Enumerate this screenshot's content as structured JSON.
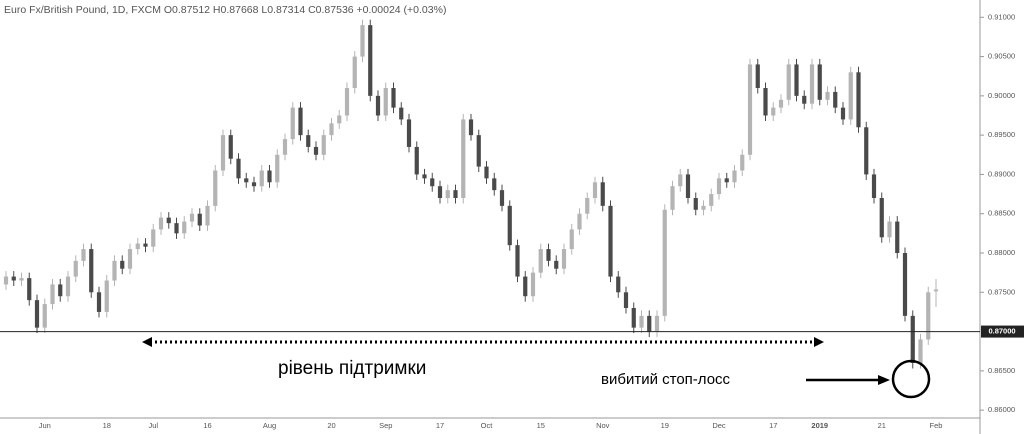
{
  "chart_data": {
    "type": "candlestick",
    "title": "Euro Fx/British Pound, 1D, FXCM O0.87512 H0.87668 L0.87314 C0.87536 +0.00024 (+0.03%)",
    "annotations": [
      "рівень підтримки",
      "вибитий стоп-лосс"
    ],
    "up_color": "#b4b4b4",
    "down_color": "#4a4a4a",
    "support_line": {
      "value": 0.87,
      "label": "0.87000"
    },
    "ylim": [
      0.859,
      0.9122
    ],
    "yticks": [
      {
        "value": 0.86,
        "label": "0.86000"
      },
      {
        "value": 0.865,
        "label": "0.86500"
      },
      {
        "value": 0.875,
        "label": "0.87500"
      },
      {
        "value": 0.88,
        "label": "0.88000"
      },
      {
        "value": 0.885,
        "label": "0.88500"
      },
      {
        "value": 0.89,
        "label": "0.89000"
      },
      {
        "value": 0.895,
        "label": "0.89500"
      },
      {
        "value": 0.9,
        "label": "0.90000"
      },
      {
        "value": 0.905,
        "label": "0.90500"
      },
      {
        "value": 0.91,
        "label": "0.91000"
      }
    ],
    "categories": [
      null,
      null,
      null,
      null,
      null,
      "Jun",
      null,
      null,
      null,
      null,
      null,
      null,
      null,
      "18",
      null,
      null,
      null,
      null,
      null,
      "Jul",
      null,
      null,
      null,
      null,
      null,
      null,
      "16",
      null,
      null,
      null,
      null,
      null,
      null,
      null,
      "Aug",
      null,
      null,
      null,
      null,
      null,
      null,
      null,
      "20",
      null,
      null,
      null,
      null,
      null,
      null,
      "Sep",
      null,
      null,
      null,
      null,
      null,
      null,
      "17",
      null,
      null,
      null,
      null,
      null,
      "Oct",
      null,
      null,
      null,
      null,
      null,
      null,
      "15",
      null,
      null,
      null,
      null,
      null,
      null,
      null,
      "Nov",
      null,
      null,
      null,
      null,
      null,
      null,
      null,
      "19",
      null,
      null,
      null,
      null,
      null,
      null,
      "Dec",
      null,
      null,
      null,
      null,
      null,
      null,
      "17",
      null,
      null,
      null,
      null,
      null,
      "2019",
      null,
      null,
      null,
      null,
      null,
      null,
      null,
      "21",
      null,
      null,
      null,
      null,
      null,
      null,
      "Feb"
    ],
    "open": [
      0.876,
      0.877,
      0.8765,
      0.8768,
      0.874,
      0.8705,
      0.8735,
      0.876,
      0.8745,
      0.877,
      0.879,
      0.8805,
      0.875,
      0.8725,
      0.8765,
      0.879,
      0.878,
      0.8805,
      0.8812,
      0.8808,
      0.883,
      0.8845,
      0.8838,
      0.8825,
      0.884,
      0.885,
      0.8835,
      0.886,
      0.8905,
      0.895,
      0.892,
      0.8895,
      0.889,
      0.8885,
      0.8905,
      0.889,
      0.8925,
      0.8945,
      0.8985,
      0.895,
      0.8935,
      0.8925,
      0.895,
      0.8965,
      0.8975,
      0.901,
      0.905,
      0.909,
      0.9,
      0.8975,
      0.901,
      0.8985,
      0.897,
      0.8935,
      0.89,
      0.8895,
      0.8885,
      0.887,
      0.888,
      0.887,
      0.897,
      0.895,
      0.891,
      0.8895,
      0.888,
      0.886,
      0.881,
      0.877,
      0.8745,
      0.8775,
      0.8805,
      0.879,
      0.878,
      0.8805,
      0.883,
      0.885,
      0.887,
      0.889,
      0.886,
      0.877,
      0.875,
      0.873,
      0.8705,
      0.872,
      0.87,
      0.872,
      0.8855,
      0.8885,
      0.89,
      0.887,
      0.8855,
      0.886,
      0.8875,
      0.8895,
      0.889,
      0.8905,
      0.8925,
      0.904,
      0.901,
      0.8975,
      0.8985,
      0.8995,
      0.904,
      0.9,
      0.899,
      0.904,
      0.8995,
      0.9005,
      0.8985,
      0.897,
      0.903,
      0.896,
      0.89,
      0.887,
      0.882,
      0.884,
      0.88,
      0.872,
      0.866,
      0.869,
      0.87512
    ],
    "high": [
      0.8777,
      0.8777,
      0.8775,
      0.8775,
      0.8747,
      0.8742,
      0.8767,
      0.8767,
      0.8777,
      0.8797,
      0.8812,
      0.8812,
      0.8757,
      0.8772,
      0.8797,
      0.8797,
      0.8812,
      0.8819,
      0.8819,
      0.8837,
      0.8852,
      0.8852,
      0.8845,
      0.8847,
      0.8857,
      0.8857,
      0.8867,
      0.8912,
      0.8957,
      0.8957,
      0.8927,
      0.8902,
      0.8897,
      0.8912,
      0.8912,
      0.8932,
      0.8952,
      0.8992,
      0.8992,
      0.8957,
      0.8942,
      0.8957,
      0.8972,
      0.8982,
      0.9017,
      0.9057,
      0.9097,
      0.9097,
      0.9007,
      0.9017,
      0.9017,
      0.8992,
      0.8977,
      0.8942,
      0.8907,
      0.8902,
      0.8892,
      0.8887,
      0.8887,
      0.8977,
      0.8977,
      0.8957,
      0.8917,
      0.8902,
      0.8887,
      0.8867,
      0.8817,
      0.8777,
      0.8782,
      0.8812,
      0.8812,
      0.8797,
      0.8812,
      0.8837,
      0.8857,
      0.8877,
      0.8897,
      0.8897,
      0.8867,
      0.8777,
      0.8757,
      0.8737,
      0.8727,
      0.8727,
      0.8727,
      0.8862,
      0.8892,
      0.8907,
      0.8907,
      0.8877,
      0.8867,
      0.8882,
      0.8902,
      0.8902,
      0.8912,
      0.8932,
      0.9047,
      0.9047,
      0.9017,
      0.8992,
      0.9002,
      0.9047,
      0.9047,
      0.9007,
      0.9047,
      0.9047,
      0.9012,
      0.9012,
      0.8992,
      0.9037,
      0.9037,
      0.8967,
      0.8907,
      0.8877,
      0.8847,
      0.8847,
      0.8807,
      0.8727,
      0.8697,
      0.8757,
      0.87668
    ],
    "low": [
      0.8753,
      0.8758,
      0.8758,
      0.8733,
      0.8698,
      0.8698,
      0.8728,
      0.8738,
      0.8738,
      0.8763,
      0.8783,
      0.8743,
      0.8718,
      0.8718,
      0.8758,
      0.8773,
      0.8773,
      0.8798,
      0.8801,
      0.8801,
      0.8823,
      0.8831,
      0.8818,
      0.8818,
      0.8833,
      0.8828,
      0.8828,
      0.8853,
      0.8898,
      0.8913,
      0.8888,
      0.8883,
      0.8878,
      0.8878,
      0.8883,
      0.8883,
      0.8918,
      0.8938,
      0.8943,
      0.8928,
      0.8918,
      0.8918,
      0.8943,
      0.8958,
      0.8968,
      0.9003,
      0.9043,
      0.8993,
      0.8968,
      0.8968,
      0.8978,
      0.8963,
      0.8928,
      0.8893,
      0.8888,
      0.8878,
      0.8863,
      0.8863,
      0.8863,
      0.8863,
      0.8943,
      0.8903,
      0.8888,
      0.8873,
      0.8853,
      0.8803,
      0.8763,
      0.8738,
      0.8738,
      0.8768,
      0.8783,
      0.8773,
      0.8773,
      0.8798,
      0.8823,
      0.8843,
      0.8863,
      0.8853,
      0.8763,
      0.8743,
      0.8723,
      0.8698,
      0.8698,
      0.8693,
      0.8693,
      0.8713,
      0.8848,
      0.8878,
      0.8863,
      0.8848,
      0.8848,
      0.8853,
      0.8868,
      0.8883,
      0.8883,
      0.8898,
      0.8918,
      0.9003,
      0.8968,
      0.8968,
      0.8978,
      0.8988,
      0.8993,
      0.8983,
      0.8983,
      0.8988,
      0.8988,
      0.8978,
      0.8963,
      0.8963,
      0.8953,
      0.8893,
      0.8863,
      0.8813,
      0.8813,
      0.8793,
      0.8713,
      0.8653,
      0.8653,
      0.8683,
      0.87314
    ],
    "close": [
      0.877,
      0.8765,
      0.8768,
      0.874,
      0.8705,
      0.8735,
      0.876,
      0.8745,
      0.877,
      0.879,
      0.8805,
      0.875,
      0.8725,
      0.8765,
      0.879,
      0.878,
      0.8805,
      0.8812,
      0.8808,
      0.883,
      0.8845,
      0.8838,
      0.8825,
      0.884,
      0.885,
      0.8835,
      0.886,
      0.8905,
      0.895,
      0.892,
      0.8895,
      0.889,
      0.8885,
      0.8905,
      0.889,
      0.8925,
      0.8945,
      0.8985,
      0.895,
      0.8935,
      0.8925,
      0.895,
      0.8965,
      0.8975,
      0.901,
      0.905,
      0.909,
      0.9,
      0.8975,
      0.901,
      0.8985,
      0.897,
      0.8935,
      0.89,
      0.8895,
      0.8885,
      0.887,
      0.888,
      0.887,
      0.897,
      0.895,
      0.891,
      0.8895,
      0.888,
      0.886,
      0.881,
      0.877,
      0.8745,
      0.8775,
      0.8805,
      0.879,
      0.878,
      0.8805,
      0.883,
      0.885,
      0.887,
      0.889,
      0.886,
      0.877,
      0.875,
      0.873,
      0.8705,
      0.872,
      0.87,
      0.872,
      0.8855,
      0.8885,
      0.89,
      0.887,
      0.8855,
      0.886,
      0.8875,
      0.8895,
      0.889,
      0.8905,
      0.8925,
      0.904,
      0.901,
      0.8975,
      0.8985,
      0.8995,
      0.904,
      0.9,
      0.899,
      0.904,
      0.8995,
      0.9005,
      0.8985,
      0.897,
      0.903,
      0.896,
      0.89,
      0.887,
      0.882,
      0.884,
      0.88,
      0.872,
      0.866,
      0.869,
      0.875,
      0.87536
    ]
  }
}
